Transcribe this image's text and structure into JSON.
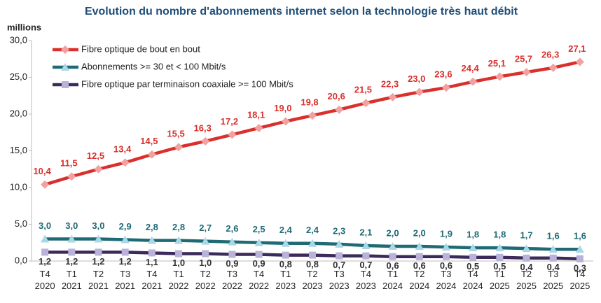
{
  "chart_data": {
    "type": "line",
    "title": "Evolution du nombre d'abonnements internet selon la technologie très haut débit",
    "y_axis_label": "millions",
    "categories": [
      "T4 2020",
      "T1 2021",
      "T2 2021",
      "T3 2021",
      "T4 2021",
      "T1 2022",
      "T2 2022",
      "T3 2022",
      "T4 2022",
      "T1 2023",
      "T2 2023",
      "T3 2023",
      "T4 2023",
      "T1 2024",
      "T2 2024",
      "T3 2024",
      "T4 2024",
      "T1 2025",
      "T2 2025",
      "T3 2025",
      "T4 2025"
    ],
    "series": [
      {
        "name": "Fibre optique de bout en bout",
        "color": "#d9302c",
        "marker": "diamond",
        "marker_color": "#f2a0a0",
        "label_color": "#d9302c",
        "label_position": "above",
        "values": [
          10.4,
          11.5,
          12.5,
          13.4,
          14.5,
          15.5,
          16.3,
          17.2,
          18.1,
          19.0,
          19.8,
          20.6,
          21.5,
          22.3,
          23.0,
          23.6,
          24.4,
          25.1,
          25.7,
          26.3,
          27.1
        ],
        "value_labels": [
          "10,4",
          "11,5",
          "12,5",
          "13,4",
          "14,5",
          "15,5",
          "16,3",
          "17,2",
          "18,1",
          "19,0",
          "19,8",
          "20,6",
          "21,5",
          "22,3",
          "23,0",
          "23,6",
          "24,4",
          "25,1",
          "25,7",
          "26,3",
          "27,1"
        ]
      },
      {
        "name": "Abonnements >= 30 et < 100 Mbit/s",
        "color": "#1f6b75",
        "marker": "triangle",
        "marker_color": "#a8d8e6",
        "label_color": "#1f6b75",
        "label_position": "above",
        "values": [
          3.0,
          3.0,
          3.0,
          2.9,
          2.8,
          2.8,
          2.7,
          2.6,
          2.5,
          2.4,
          2.4,
          2.3,
          2.1,
          2.0,
          2.0,
          1.9,
          1.8,
          1.8,
          1.7,
          1.6,
          1.6
        ],
        "value_labels": [
          "3,0",
          "3,0",
          "3,0",
          "2,9",
          "2,8",
          "2,8",
          "2,7",
          "2,6",
          "2,5",
          "2,4",
          "2,4",
          "2,3",
          "2,1",
          "2,0",
          "2,0",
          "1,9",
          "1,8",
          "1,8",
          "1,7",
          "1,6",
          "1,6"
        ]
      },
      {
        "name": "Fibre optique par terminaison coaxiale >= 100 Mbit/s",
        "color": "#3b2a5a",
        "marker": "square",
        "marker_color": "#b9b2d9",
        "label_color": "#333333",
        "label_position": "below",
        "values": [
          1.2,
          1.2,
          1.2,
          1.2,
          1.1,
          1.0,
          1.0,
          0.9,
          0.9,
          0.8,
          0.8,
          0.7,
          0.7,
          0.6,
          0.6,
          0.6,
          0.5,
          0.5,
          0.4,
          0.4,
          0.3
        ],
        "value_labels": [
          "1,2",
          "1,2",
          "1,2",
          "1,2",
          "1,1",
          "1,0",
          "1,0",
          "0,9",
          "0,9",
          "0,8",
          "0,8",
          "0,7",
          "0,7",
          "0,6",
          "0,6",
          "0,6",
          "0,5",
          "0,5",
          "0,4",
          "0,4",
          "0,3"
        ]
      }
    ],
    "ylim": [
      0,
      30
    ],
    "yticks": [
      {
        "value": 0,
        "label": "0,0"
      },
      {
        "value": 5,
        "label": "5,0"
      },
      {
        "value": 10,
        "label": "10,0"
      },
      {
        "value": 15,
        "label": "15,0"
      },
      {
        "value": 20,
        "label": "20,0"
      },
      {
        "value": 25,
        "label": "25,0"
      },
      {
        "value": 30,
        "label": "30,0"
      }
    ],
    "legend": "top-left",
    "grid": false
  }
}
